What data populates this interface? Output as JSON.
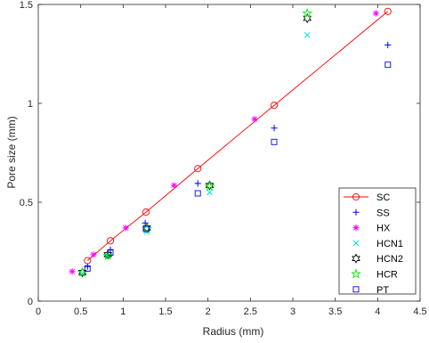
{
  "chart_data": {
    "type": "scatter",
    "xlabel": "Radius (mm)",
    "ylabel": "Pore size (mm)",
    "xlim": [
      0,
      4.5
    ],
    "ylim": [
      0,
      1.5
    ],
    "xticks": [
      "0",
      "0.5",
      "1",
      "1.5",
      "2",
      "2.5",
      "3",
      "3.5",
      "4",
      "4.5"
    ],
    "yticks": [
      "0",
      "0.5",
      "1",
      "1.5"
    ],
    "xtick_values": [
      0,
      0.5,
      1,
      1.5,
      2,
      2.5,
      3,
      3.5,
      4,
      4.5
    ],
    "ytick_values": [
      0,
      0.5,
      1,
      1.5
    ],
    "grid": false,
    "legend_position": "bottom-right",
    "series": [
      {
        "name": "SC",
        "marker": "circle",
        "line": true,
        "color": "#ff0000",
        "x": [
          0.58,
          0.85,
          1.27,
          1.88,
          2.78,
          4.12
        ],
        "y": [
          0.205,
          0.305,
          0.45,
          0.67,
          0.99,
          1.465
        ]
      },
      {
        "name": "SS",
        "marker": "plus",
        "line": false,
        "color": "#0000ff",
        "x": [
          0.58,
          0.85,
          1.26,
          1.88,
          2.78,
          4.12
        ],
        "y": [
          0.175,
          0.26,
          0.395,
          0.595,
          0.875,
          1.295
        ]
      },
      {
        "name": "HX",
        "marker": "asterisk",
        "line": false,
        "color": "#ff00ff",
        "x": [
          0.4,
          0.65,
          1.03,
          1.6,
          2.55,
          3.98
        ],
        "y": [
          0.15,
          0.235,
          0.37,
          0.585,
          0.92,
          1.455
        ]
      },
      {
        "name": "HCN1",
        "marker": "cross",
        "line": false,
        "color": "#00e5ee",
        "x": [
          0.52,
          0.82,
          1.28,
          2.02,
          3.17
        ],
        "y": [
          0.14,
          0.225,
          0.35,
          0.55,
          1.345
        ]
      },
      {
        "name": "HCN2",
        "marker": "hexagram",
        "line": false,
        "color": "#000000",
        "x": [
          0.52,
          0.82,
          1.28,
          2.02,
          3.17
        ],
        "y": [
          0.145,
          0.235,
          0.37,
          0.585,
          1.43
        ]
      },
      {
        "name": "HCR",
        "marker": "pentagram",
        "line": false,
        "color": "#00ee00",
        "x": [
          0.52,
          0.82,
          1.28,
          2.02,
          3.17
        ],
        "y": [
          0.145,
          0.23,
          0.365,
          0.58,
          1.455
        ]
      },
      {
        "name": "PT",
        "marker": "square",
        "line": false,
        "color": "#0000ff",
        "x": [
          0.58,
          0.85,
          1.27,
          1.88,
          2.78,
          4.12
        ],
        "y": [
          0.165,
          0.245,
          0.365,
          0.545,
          0.805,
          1.195
        ]
      }
    ]
  }
}
